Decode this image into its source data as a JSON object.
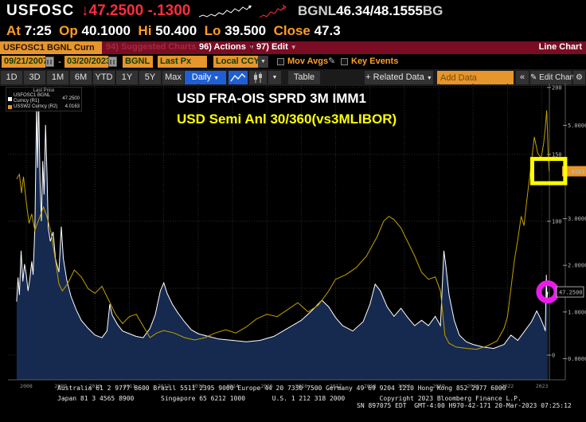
{
  "header": {
    "ticker": "USFOSC",
    "direction_arrow": "↓",
    "last_price": "47.2500",
    "change": "-.1300",
    "quote_source": "BGNL",
    "bid_ask": "46.34/48.1555",
    "quote_suffix": "BG",
    "sparklines": {
      "white": "2,17 7,15 12,17 17,14 22,16 27,12 32,14 37,9 42,12 47,7 52,10 57,5 62,8 67,3",
      "red": "2,18 7,15 11,17 16,11 21,13 25,7 29,9 33,4"
    },
    "stats": {
      "at_label": "At",
      "at": "7:25",
      "op_label": "Op",
      "op": "40.1000",
      "hi_label": "Hi",
      "hi": "50.400",
      "lo_label": "Lo",
      "lo": "39.500",
      "close_label": "Close",
      "close": "47.3"
    }
  },
  "menubar": {
    "security_field": "USFOSC1 BGNL Curn",
    "suggested_charts": "94) Suggested Charts",
    "actions": "96) Actions",
    "edit": "97) Edit",
    "view_label": "Line Chart"
  },
  "controls": {
    "date_from": "09/21/2007",
    "date_sep": "-",
    "date_to": "03/20/2023",
    "source": "BGNL",
    "field": "Last Px",
    "currency": "Local CCY",
    "mov_avgs_label": "Mov Avgs",
    "key_events_label": "Key Events",
    "pencil": "✎"
  },
  "toolbar": {
    "periods": [
      "1D",
      "3D",
      "1M",
      "6M",
      "YTD",
      "1Y",
      "5Y",
      "Max"
    ],
    "frequency": "Daily",
    "dropdown_glyph": "▼",
    "table_label": "Table",
    "related_data_label": "+ Related Data",
    "add_data_placeholder": "Add Data",
    "collapse_label": "«",
    "edit_chart_label": "✎ Edit Chart",
    "gear_glyph": "⚙"
  },
  "legend": {
    "title": "Last Price",
    "items": [
      {
        "swatch": "#ffffff",
        "label": "USFOSC1 BGNL Curncy (R1)",
        "value": "47.2500"
      },
      {
        "swatch": "#e5962d",
        "label": "USSW2 Curncy (R2)",
        "value": "4.0163"
      }
    ]
  },
  "chart": {
    "title_line1": "USD FRA-OIS SPRD 3M IMM1",
    "title_line2": "USD Semi Anl 30/360(vs3MLIBOR)"
  },
  "chart_data": {
    "type": "line",
    "title": "USD FRA-OIS SPRD 3M IMM1",
    "subtitle": "USD Semi Anl 30/360(vs3MLIBOR)",
    "x_ticks": [
      2008,
      2009,
      2010,
      2011,
      2012,
      2013,
      2014,
      2015,
      2016,
      2017,
      2018,
      2019,
      2020,
      2021,
      2022,
      2023
    ],
    "x_tick_labels": [
      "2008",
      "2009",
      "2010",
      "2011",
      "2012",
      "2013",
      "2014",
      "2015",
      "2016",
      "2017",
      "2018",
      "2019",
      "2020",
      "2021",
      "2022",
      "2023"
    ],
    "axes": {
      "R1": {
        "grid_ticks": [
          200,
          150,
          100,
          50,
          0
        ],
        "shown_ticks": [
          200,
          150,
          100,
          0
        ],
        "range": [
          0,
          200
        ]
      },
      "R2": {
        "shown_ticks": [
          5,
          3,
          2,
          1,
          0
        ],
        "range": [
          0,
          5.5
        ],
        "current_value": 4.0163,
        "current_label": "4.0163"
      }
    },
    "series": [
      {
        "name": "USFOSC1 BGNL Curncy (R1)",
        "axis": "R1",
        "color": "#ffffff",
        "fill": "#16294e",
        "points": [
          [
            2007.72,
            40
          ],
          [
            2007.76,
            58
          ],
          [
            2007.8,
            45
          ],
          [
            2007.85,
            78
          ],
          [
            2007.9,
            55
          ],
          [
            2007.95,
            68
          ],
          [
            2008.0,
            60
          ],
          [
            2008.05,
            48
          ],
          [
            2008.1,
            56
          ],
          [
            2008.16,
            70
          ],
          [
            2008.2,
            60
          ],
          [
            2008.25,
            95
          ],
          [
            2008.28,
            150
          ],
          [
            2008.3,
            188
          ],
          [
            2008.33,
            140
          ],
          [
            2008.36,
            192
          ],
          [
            2008.4,
            130
          ],
          [
            2008.44,
            100
          ],
          [
            2008.48,
            145
          ],
          [
            2008.52,
            120
          ],
          [
            2008.56,
            172
          ],
          [
            2008.6,
            138
          ],
          [
            2008.64,
            95
          ],
          [
            2008.7,
            85
          ],
          [
            2008.78,
            92
          ],
          [
            2008.85,
            72
          ],
          [
            2008.95,
            62
          ],
          [
            2009.02,
            96
          ],
          [
            2009.08,
            72
          ],
          [
            2009.18,
            56
          ],
          [
            2009.3,
            44
          ],
          [
            2009.45,
            34
          ],
          [
            2009.6,
            26
          ],
          [
            2009.8,
            20
          ],
          [
            2010.0,
            15
          ],
          [
            2010.2,
            13
          ],
          [
            2010.35,
            18
          ],
          [
            2010.43,
            38
          ],
          [
            2010.5,
            30
          ],
          [
            2010.65,
            23
          ],
          [
            2010.8,
            18
          ],
          [
            2011.0,
            16
          ],
          [
            2011.2,
            14
          ],
          [
            2011.4,
            13
          ],
          [
            2011.6,
            20
          ],
          [
            2011.75,
            30
          ],
          [
            2011.9,
            48
          ],
          [
            2012.0,
            54
          ],
          [
            2012.1,
            46
          ],
          [
            2012.25,
            38
          ],
          [
            2012.4,
            32
          ],
          [
            2012.6,
            25
          ],
          [
            2012.8,
            19
          ],
          [
            2013.0,
            16
          ],
          [
            2013.3,
            14
          ],
          [
            2013.6,
            12
          ],
          [
            2014.0,
            11
          ],
          [
            2014.4,
            10
          ],
          [
            2014.8,
            11
          ],
          [
            2015.2,
            14
          ],
          [
            2015.6,
            20
          ],
          [
            2016.0,
            26
          ],
          [
            2016.3,
            33
          ],
          [
            2016.6,
            41
          ],
          [
            2016.8,
            36
          ],
          [
            2017.0,
            28
          ],
          [
            2017.2,
            22
          ],
          [
            2017.5,
            18
          ],
          [
            2017.8,
            25
          ],
          [
            2018.0,
            38
          ],
          [
            2018.15,
            53
          ],
          [
            2018.3,
            48
          ],
          [
            2018.5,
            36
          ],
          [
            2018.7,
            29
          ],
          [
            2018.9,
            35
          ],
          [
            2019.1,
            28
          ],
          [
            2019.3,
            22
          ],
          [
            2019.5,
            26
          ],
          [
            2019.7,
            22
          ],
          [
            2019.9,
            29
          ],
          [
            2020.05,
            22
          ],
          [
            2020.15,
            78
          ],
          [
            2020.2,
            68
          ],
          [
            2020.3,
            45
          ],
          [
            2020.45,
            26
          ],
          [
            2020.6,
            15
          ],
          [
            2020.8,
            10
          ],
          [
            2021.0,
            8
          ],
          [
            2021.3,
            6
          ],
          [
            2021.6,
            5
          ],
          [
            2021.9,
            8
          ],
          [
            2022.1,
            15
          ],
          [
            2022.3,
            11
          ],
          [
            2022.5,
            18
          ],
          [
            2022.7,
            25
          ],
          [
            2022.85,
            33
          ],
          [
            2022.95,
            28
          ],
          [
            2023.05,
            22
          ],
          [
            2023.1,
            18
          ],
          [
            2023.13,
            60
          ],
          [
            2023.15,
            42
          ],
          [
            2023.17,
            47.25
          ]
        ]
      },
      {
        "name": "USSW2 Curncy (R2)",
        "axis": "R2",
        "color": "#c2a000",
        "fill": null,
        "points": [
          [
            2007.72,
            3.85
          ],
          [
            2007.8,
            3.95
          ],
          [
            2007.86,
            3.55
          ],
          [
            2007.92,
            3.9
          ],
          [
            2008.0,
            3.35
          ],
          [
            2008.08,
            2.9
          ],
          [
            2008.16,
            3.1
          ],
          [
            2008.25,
            2.75
          ],
          [
            2008.35,
            2.95
          ],
          [
            2008.5,
            3.25
          ],
          [
            2008.6,
            3.05
          ],
          [
            2008.72,
            2.7
          ],
          [
            2008.85,
            2.1
          ],
          [
            2008.95,
            1.6
          ],
          [
            2009.05,
            1.45
          ],
          [
            2009.2,
            1.6
          ],
          [
            2009.4,
            1.9
          ],
          [
            2009.6,
            1.75
          ],
          [
            2009.8,
            1.5
          ],
          [
            2010.0,
            1.4
          ],
          [
            2010.2,
            1.55
          ],
          [
            2010.4,
            1.25
          ],
          [
            2010.6,
            0.95
          ],
          [
            2010.8,
            0.75
          ],
          [
            2011.0,
            0.9
          ],
          [
            2011.2,
            0.95
          ],
          [
            2011.4,
            0.7
          ],
          [
            2011.6,
            0.45
          ],
          [
            2011.8,
            0.55
          ],
          [
            2012.0,
            0.6
          ],
          [
            2012.3,
            0.55
          ],
          [
            2012.6,
            0.45
          ],
          [
            2012.9,
            0.4
          ],
          [
            2013.2,
            0.45
          ],
          [
            2013.5,
            0.55
          ],
          [
            2013.8,
            0.62
          ],
          [
            2014.1,
            0.55
          ],
          [
            2014.4,
            0.68
          ],
          [
            2014.7,
            0.85
          ],
          [
            2015.0,
            0.95
          ],
          [
            2015.3,
            0.9
          ],
          [
            2015.6,
            1.05
          ],
          [
            2015.9,
            1.2
          ],
          [
            2016.2,
            1.0
          ],
          [
            2016.5,
            1.15
          ],
          [
            2016.8,
            1.45
          ],
          [
            2017.0,
            1.7
          ],
          [
            2017.3,
            1.8
          ],
          [
            2017.6,
            1.95
          ],
          [
            2017.9,
            2.2
          ],
          [
            2018.2,
            2.6
          ],
          [
            2018.4,
            2.95
          ],
          [
            2018.55,
            3.05
          ],
          [
            2018.7,
            2.98
          ],
          [
            2018.9,
            2.8
          ],
          [
            2019.1,
            2.5
          ],
          [
            2019.3,
            2.2
          ],
          [
            2019.5,
            1.85
          ],
          [
            2019.7,
            1.7
          ],
          [
            2019.9,
            1.75
          ],
          [
            2020.05,
            1.45
          ],
          [
            2020.18,
            0.5
          ],
          [
            2020.3,
            0.33
          ],
          [
            2020.5,
            0.25
          ],
          [
            2020.8,
            0.22
          ],
          [
            2021.1,
            0.2
          ],
          [
            2021.4,
            0.27
          ],
          [
            2021.7,
            0.38
          ],
          [
            2021.9,
            0.65
          ],
          [
            2022.0,
            0.9
          ],
          [
            2022.1,
            1.5
          ],
          [
            2022.2,
            2.1
          ],
          [
            2022.3,
            2.55
          ],
          [
            2022.4,
            3.05
          ],
          [
            2022.48,
            2.85
          ],
          [
            2022.58,
            3.5
          ],
          [
            2022.68,
            4.1
          ],
          [
            2022.78,
            4.75
          ],
          [
            2022.88,
            4.4
          ],
          [
            2022.98,
            4.3
          ],
          [
            2023.05,
            4.6
          ],
          [
            2023.1,
            4.95
          ],
          [
            2023.14,
            5.32
          ],
          [
            2023.16,
            4.95
          ],
          [
            2023.18,
            4.5
          ],
          [
            2023.21,
            4.02
          ]
        ]
      }
    ],
    "annotations": {
      "highlight_box": {
        "axis": "R2",
        "x1": 2022.72,
        "x2": 2023.68,
        "v1": 3.76,
        "v2": 4.28,
        "color": "#ffff00"
      },
      "highlight_circle": {
        "axis": "R1",
        "x": 2023.17,
        "v": 47.25,
        "r": 11,
        "color": "#ea1bea"
      },
      "last_price_flag": {
        "v": 47.25,
        "label": "47.2500"
      }
    }
  },
  "footer": {
    "line1": "Australia 61 2 9777 8600 Brazil 5511 2395 9000 Europe 44 20 7330 7500 Germany 49 69 9204 1210 Hong Kong 852 2977 6000",
    "line2": "Japan 81 3 4565 8900       Singapore 65 6212 1000       U.S. 1 212 318 2000         Copyright 2023 Bloomberg Finance L.P.",
    "line3": "SN 897075 EDT  GMT-4:00 H970-42-171 20-Mar-2023 07:25:12"
  }
}
